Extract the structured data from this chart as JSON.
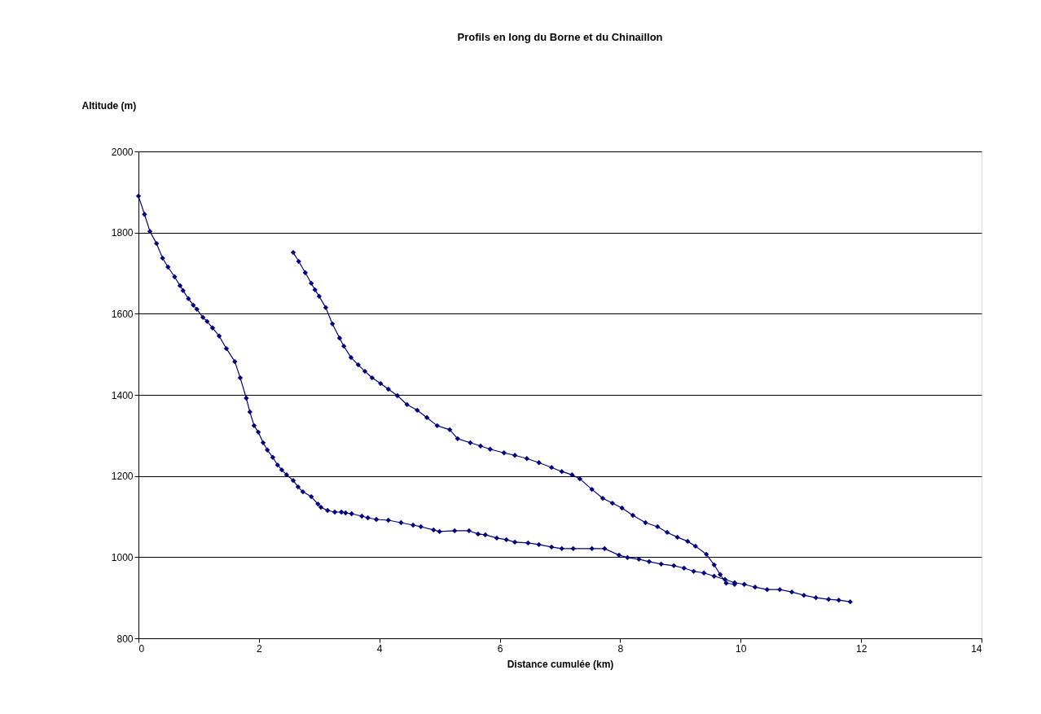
{
  "chart_data": {
    "type": "line",
    "title": "Profils en long du Borne et du Chinaillon",
    "xlabel": "Distance cumulée (km)",
    "ylabel": "Altitude (m)",
    "xlim": [
      0,
      14
    ],
    "xticks": [
      0,
      2,
      4,
      6,
      8,
      10,
      12,
      14
    ],
    "ylim": [
      800,
      2000
    ],
    "yticks": [
      800,
      1000,
      1200,
      1400,
      1600,
      1800,
      2000
    ],
    "grid": "y",
    "legend": false,
    "marker": "diamond",
    "line_style": "solid",
    "series": [
      {
        "color": "#000080",
        "x": [
          0,
          0.1,
          0.19,
          0.3,
          0.4,
          0.49,
          0.6,
          0.69,
          0.74,
          0.83,
          0.91,
          0.97,
          1.07,
          1.14,
          1.23,
          1.34,
          1.46,
          1.6,
          1.69,
          1.79,
          1.85,
          1.92,
          1.99,
          2.07,
          2.14,
          2.23,
          2.31,
          2.38,
          2.46,
          2.57,
          2.65,
          2.73,
          2.87,
          2.98,
          3.03,
          3.14,
          3.26,
          3.37,
          3.44,
          3.54,
          3.71,
          3.81,
          3.95,
          4.15,
          4.36,
          4.56,
          4.69,
          4.9,
          5.0,
          5.25,
          5.49,
          5.64,
          5.76,
          5.95,
          6.11,
          6.25,
          6.47,
          6.65,
          6.86,
          7.03,
          7.22,
          7.53,
          7.74,
          7.98,
          8.12,
          8.31,
          8.48,
          8.68,
          8.89,
          9.06,
          9.22,
          9.39,
          9.56,
          9.74,
          9.9,
          10.06,
          10.24,
          10.44,
          10.65,
          10.85,
          11.05,
          11.25,
          11.46,
          11.63,
          11.82
        ],
        "values": [
          1890,
          1845,
          1803,
          1773,
          1737,
          1715,
          1691,
          1669,
          1657,
          1637,
          1621,
          1611,
          1591,
          1581,
          1565,
          1545,
          1514,
          1482,
          1442,
          1392,
          1358,
          1324,
          1308,
          1282,
          1264,
          1246,
          1227,
          1215,
          1203,
          1189,
          1173,
          1161,
          1149,
          1131,
          1123,
          1115,
          1111,
          1111,
          1109,
          1107,
          1101,
          1097,
          1093,
          1091,
          1085,
          1079,
          1075,
          1067,
          1063,
          1065,
          1065,
          1057,
          1055,
          1047,
          1043,
          1037,
          1035,
          1031,
          1025,
          1021,
          1021,
          1021,
          1021,
          1005,
          999,
          995,
          989,
          983,
          979,
          973,
          965,
          961,
          953,
          945,
          937,
          933,
          926,
          920,
          920,
          914,
          906,
          900,
          896,
          894,
          890
        ]
      },
      {
        "color": "#000080",
        "x": [
          2.57,
          2.66,
          2.77,
          2.87,
          2.93,
          3.0,
          3.11,
          3.22,
          3.34,
          3.41,
          3.53,
          3.65,
          3.76,
          3.88,
          4.02,
          4.15,
          4.3,
          4.46,
          4.63,
          4.79,
          4.96,
          5.17,
          5.3,
          5.51,
          5.68,
          5.84,
          6.07,
          6.25,
          6.45,
          6.65,
          6.86,
          7.03,
          7.2,
          7.33,
          7.53,
          7.71,
          7.87,
          8.03,
          8.21,
          8.42,
          8.62,
          8.78,
          8.95,
          9.12,
          9.25,
          9.43,
          9.56,
          9.66,
          9.76,
          9.9
        ],
        "values": [
          1751,
          1729,
          1701,
          1675,
          1659,
          1643,
          1615,
          1575,
          1540,
          1520,
          1492,
          1474,
          1458,
          1442,
          1428,
          1414,
          1398,
          1376,
          1362,
          1344,
          1324,
          1314,
          1292,
          1282,
          1274,
          1266,
          1257,
          1251,
          1243,
          1233,
          1221,
          1211,
          1203,
          1193,
          1167,
          1145,
          1133,
          1121,
          1103,
          1085,
          1075,
          1061,
          1049,
          1039,
          1027,
          1007,
          981,
          957,
          936,
          933
        ]
      }
    ]
  }
}
